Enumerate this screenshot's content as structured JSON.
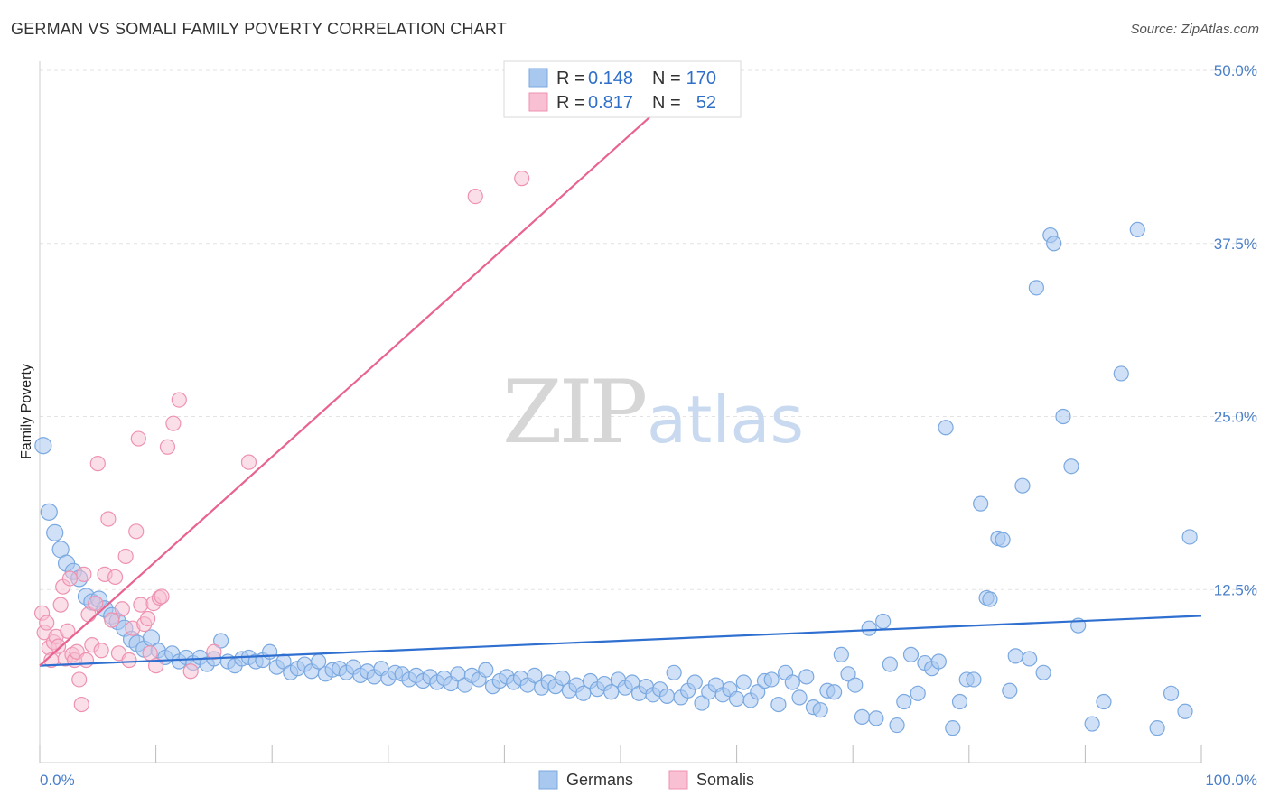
{
  "title": "GERMAN VS SOMALI FAMILY POVERTY CORRELATION CHART",
  "source": "Source: ZipAtlas.com",
  "watermark": {
    "zip": "ZIP",
    "atlas": "atlas"
  },
  "colors": {
    "german_fill": "#a9c8f0",
    "german_stroke": "#7aa8e0",
    "german_line": "#2f6fd0",
    "somali_fill": "#f8c0d2",
    "somali_stroke": "#ee92b0",
    "somali_line": "#e8648e",
    "grid": "#e3e3e3",
    "tick_text": "#4a7fc9"
  },
  "legend": {
    "rows": [
      {
        "r_label": "R =",
        "r_value": "0.148",
        "n_label": "N =",
        "n_value": "170"
      },
      {
        "r_label": "R =",
        "r_value": "0.817",
        "n_label": "N =",
        "n_value": "52"
      }
    ]
  },
  "bottom_legend": [
    "Germans",
    "Somalis"
  ],
  "chart_data": {
    "type": "scatter",
    "title": "GERMAN VS SOMALI FAMILY POVERTY CORRELATION CHART",
    "xlabel": "",
    "ylabel": "Family Poverty",
    "xlim": [
      0,
      100
    ],
    "ylim": [
      0,
      50
    ],
    "x_tick_labels": [
      "0.0%",
      "100.0%"
    ],
    "y_ticks": [
      12.5,
      25.0,
      37.5,
      50.0
    ],
    "y_tick_labels": [
      "12.5%",
      "25.0%",
      "37.5%",
      "50.0%"
    ],
    "grid": true,
    "legend_position": "top-center",
    "series": [
      {
        "name": "Germans",
        "r": 0.148,
        "n": 170,
        "trend": {
          "x": [
            0,
            100
          ],
          "y": [
            7.0,
            10.6
          ]
        },
        "points": [
          [
            0.3,
            22.9
          ],
          [
            0.8,
            18.1
          ],
          [
            1.3,
            16.6
          ],
          [
            1.8,
            15.4
          ],
          [
            2.3,
            14.4
          ],
          [
            2.9,
            13.8
          ],
          [
            3.4,
            13.3
          ],
          [
            4.0,
            12.0
          ],
          [
            4.5,
            11.6
          ],
          [
            5.1,
            11.8
          ],
          [
            5.6,
            11.1
          ],
          [
            6.2,
            10.6
          ],
          [
            6.7,
            10.2
          ],
          [
            7.3,
            9.7
          ],
          [
            7.9,
            8.9
          ],
          [
            8.4,
            8.6
          ],
          [
            9.0,
            8.2
          ],
          [
            9.6,
            9.0
          ],
          [
            10.2,
            8.1
          ],
          [
            10.8,
            7.6
          ],
          [
            11.4,
            7.9
          ],
          [
            12.0,
            7.3
          ],
          [
            12.6,
            7.6
          ],
          [
            13.2,
            7.2
          ],
          [
            13.8,
            7.6
          ],
          [
            14.4,
            7.1
          ],
          [
            15.0,
            7.5
          ],
          [
            15.6,
            8.8
          ],
          [
            16.2,
            7.3
          ],
          [
            16.8,
            7.0
          ],
          [
            17.4,
            7.5
          ],
          [
            18.0,
            7.6
          ],
          [
            18.6,
            7.3
          ],
          [
            19.2,
            7.4
          ],
          [
            19.8,
            8.0
          ],
          [
            20.4,
            6.9
          ],
          [
            21.0,
            7.3
          ],
          [
            21.6,
            6.5
          ],
          [
            22.2,
            6.8
          ],
          [
            22.8,
            7.1
          ],
          [
            23.4,
            6.6
          ],
          [
            24.0,
            7.3
          ],
          [
            24.6,
            6.4
          ],
          [
            25.2,
            6.7
          ],
          [
            25.8,
            6.8
          ],
          [
            26.4,
            6.5
          ],
          [
            27.0,
            6.9
          ],
          [
            27.6,
            6.3
          ],
          [
            28.2,
            6.6
          ],
          [
            28.8,
            6.2
          ],
          [
            29.4,
            6.8
          ],
          [
            30.0,
            6.1
          ],
          [
            30.6,
            6.5
          ],
          [
            31.2,
            6.4
          ],
          [
            31.8,
            6.0
          ],
          [
            32.4,
            6.3
          ],
          [
            33.0,
            5.9
          ],
          [
            33.6,
            6.2
          ],
          [
            34.2,
            5.8
          ],
          [
            34.8,
            6.1
          ],
          [
            35.4,
            5.7
          ],
          [
            36.0,
            6.4
          ],
          [
            36.6,
            5.6
          ],
          [
            37.2,
            6.3
          ],
          [
            37.8,
            6.0
          ],
          [
            38.4,
            6.7
          ],
          [
            39.0,
            5.5
          ],
          [
            39.6,
            5.9
          ],
          [
            40.2,
            6.2
          ],
          [
            40.8,
            5.8
          ],
          [
            41.4,
            6.1
          ],
          [
            42.0,
            5.6
          ],
          [
            42.6,
            6.3
          ],
          [
            43.2,
            5.4
          ],
          [
            43.8,
            5.8
          ],
          [
            44.4,
            5.5
          ],
          [
            45.0,
            6.1
          ],
          [
            45.6,
            5.2
          ],
          [
            46.2,
            5.6
          ],
          [
            46.8,
            5.0
          ],
          [
            47.4,
            5.9
          ],
          [
            48.0,
            5.3
          ],
          [
            48.6,
            5.7
          ],
          [
            49.2,
            5.1
          ],
          [
            49.8,
            6.0
          ],
          [
            50.4,
            5.4
          ],
          [
            51.0,
            5.8
          ],
          [
            51.6,
            5.0
          ],
          [
            52.2,
            5.5
          ],
          [
            52.8,
            4.9
          ],
          [
            53.4,
            5.3
          ],
          [
            54.0,
            4.8
          ],
          [
            54.6,
            6.5
          ],
          [
            55.2,
            4.7
          ],
          [
            55.8,
            5.2
          ],
          [
            56.4,
            5.8
          ],
          [
            57.0,
            4.3
          ],
          [
            57.6,
            5.1
          ],
          [
            58.2,
            5.6
          ],
          [
            58.8,
            4.9
          ],
          [
            59.4,
            5.3
          ],
          [
            60.0,
            4.6
          ],
          [
            60.6,
            5.8
          ],
          [
            61.2,
            4.5
          ],
          [
            61.8,
            5.1
          ],
          [
            62.4,
            5.9
          ],
          [
            63.0,
            6.0
          ],
          [
            63.6,
            4.2
          ],
          [
            64.2,
            6.5
          ],
          [
            64.8,
            5.8
          ],
          [
            65.4,
            4.7
          ],
          [
            66.0,
            6.2
          ],
          [
            66.6,
            4.0
          ],
          [
            67.2,
            3.8
          ],
          [
            67.8,
            5.2
          ],
          [
            68.4,
            5.1
          ],
          [
            69.0,
            7.8
          ],
          [
            69.6,
            6.4
          ],
          [
            70.2,
            5.6
          ],
          [
            70.8,
            3.3
          ],
          [
            71.4,
            9.7
          ],
          [
            72.0,
            3.2
          ],
          [
            72.6,
            10.2
          ],
          [
            73.2,
            7.1
          ],
          [
            73.8,
            2.7
          ],
          [
            74.4,
            4.4
          ],
          [
            75.0,
            7.8
          ],
          [
            75.6,
            5.0
          ],
          [
            76.2,
            7.2
          ],
          [
            76.8,
            6.8
          ],
          [
            77.4,
            7.3
          ],
          [
            78.0,
            24.2
          ],
          [
            78.6,
            2.5
          ],
          [
            79.2,
            4.4
          ],
          [
            79.8,
            6.0
          ],
          [
            80.4,
            6.0
          ],
          [
            81.0,
            18.7
          ],
          [
            81.5,
            11.9
          ],
          [
            81.8,
            11.8
          ],
          [
            82.5,
            16.2
          ],
          [
            82.9,
            16.1
          ],
          [
            83.5,
            5.2
          ],
          [
            84.0,
            7.7
          ],
          [
            84.6,
            20.0
          ],
          [
            85.2,
            7.5
          ],
          [
            85.8,
            34.3
          ],
          [
            86.4,
            6.5
          ],
          [
            87.0,
            38.1
          ],
          [
            87.3,
            37.5
          ],
          [
            88.1,
            25.0
          ],
          [
            88.8,
            21.4
          ],
          [
            89.4,
            9.9
          ],
          [
            90.6,
            2.8
          ],
          [
            91.6,
            4.4
          ],
          [
            93.1,
            28.1
          ],
          [
            94.5,
            38.5
          ],
          [
            96.2,
            2.5
          ],
          [
            97.4,
            5.0
          ],
          [
            98.6,
            3.7
          ],
          [
            99.0,
            16.3
          ]
        ]
      },
      {
        "name": "Somalis",
        "r": 0.817,
        "n": 52,
        "trend": {
          "x": [
            0,
            55
          ],
          "y": [
            7.0,
            48.5
          ]
        },
        "points": [
          [
            0.2,
            10.8
          ],
          [
            0.4,
            9.4
          ],
          [
            0.6,
            10.1
          ],
          [
            0.8,
            8.3
          ],
          [
            1.0,
            7.4
          ],
          [
            1.2,
            8.7
          ],
          [
            1.4,
            9.1
          ],
          [
            1.6,
            8.4
          ],
          [
            1.8,
            11.4
          ],
          [
            2.0,
            12.7
          ],
          [
            2.2,
            7.5
          ],
          [
            2.4,
            9.5
          ],
          [
            2.6,
            13.3
          ],
          [
            2.8,
            7.8
          ],
          [
            3.0,
            7.4
          ],
          [
            3.2,
            8.0
          ],
          [
            3.4,
            6.0
          ],
          [
            3.6,
            4.2
          ],
          [
            3.8,
            13.6
          ],
          [
            4.0,
            7.4
          ],
          [
            4.2,
            10.7
          ],
          [
            4.5,
            8.5
          ],
          [
            4.8,
            11.5
          ],
          [
            5.0,
            21.6
          ],
          [
            5.3,
            8.1
          ],
          [
            5.6,
            13.6
          ],
          [
            5.9,
            17.6
          ],
          [
            6.2,
            10.3
          ],
          [
            6.5,
            13.4
          ],
          [
            6.8,
            7.9
          ],
          [
            7.1,
            11.1
          ],
          [
            7.4,
            14.9
          ],
          [
            7.7,
            7.4
          ],
          [
            8.0,
            9.7
          ],
          [
            8.3,
            16.7
          ],
          [
            8.5,
            23.4
          ],
          [
            8.7,
            11.4
          ],
          [
            9.0,
            10.0
          ],
          [
            9.3,
            10.4
          ],
          [
            9.5,
            7.9
          ],
          [
            9.8,
            11.5
          ],
          [
            10.0,
            7.0
          ],
          [
            10.3,
            11.9
          ],
          [
            10.5,
            12.0
          ],
          [
            11.0,
            22.8
          ],
          [
            11.5,
            24.5
          ],
          [
            12.0,
            26.2
          ],
          [
            13.0,
            6.6
          ],
          [
            15.0,
            8.0
          ],
          [
            18.0,
            21.7
          ],
          [
            37.5,
            40.9
          ],
          [
            41.5,
            42.2
          ]
        ]
      }
    ]
  }
}
